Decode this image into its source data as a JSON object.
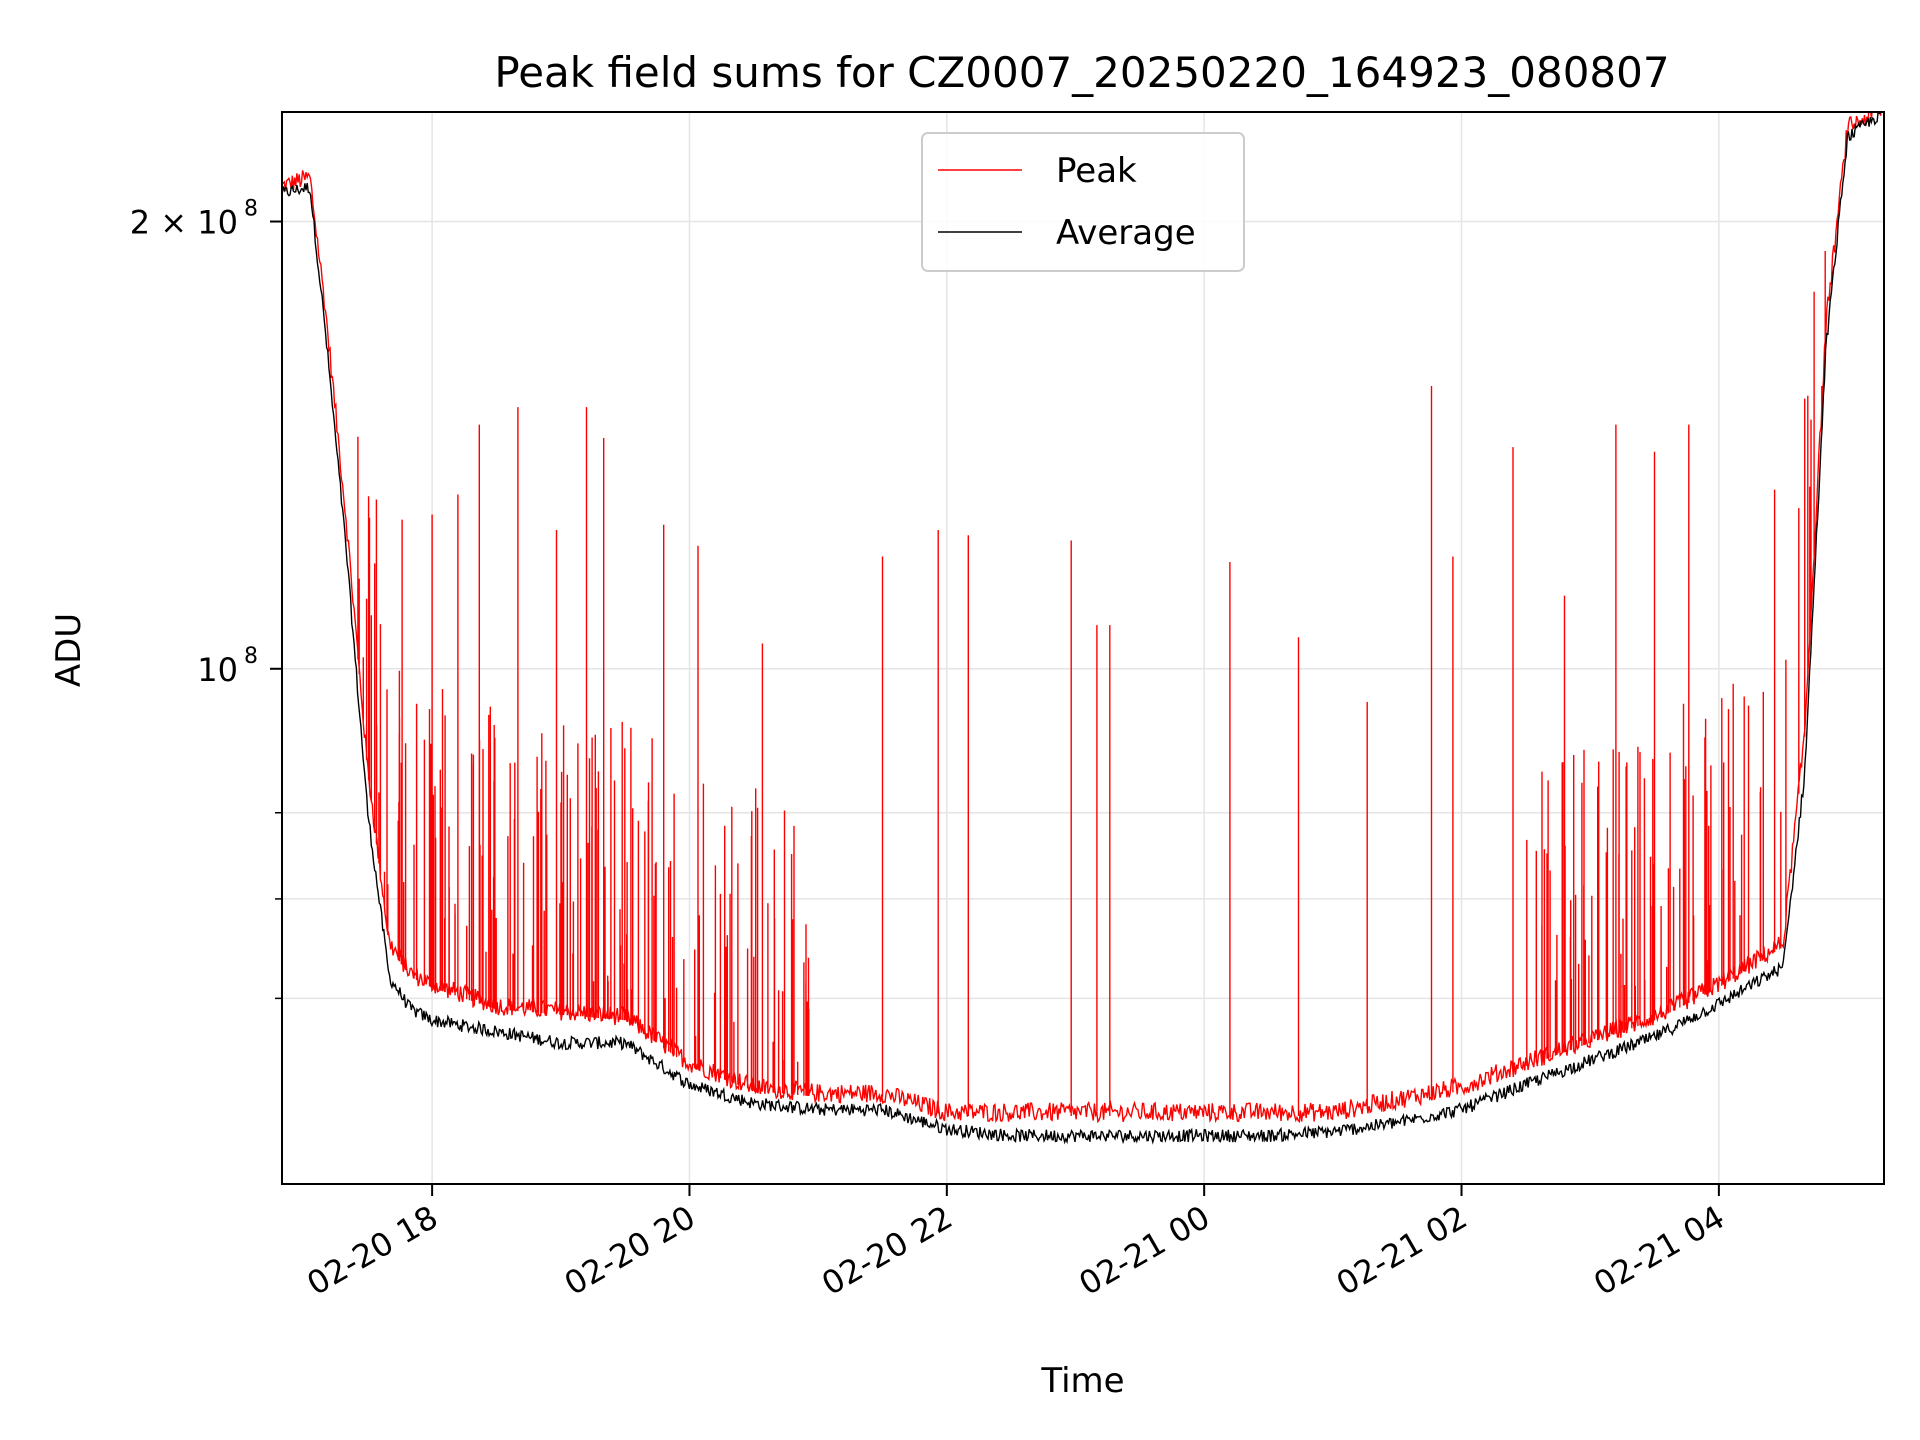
{
  "chart_data": {
    "type": "line",
    "title": "Peak field sums for CZ0007_20250220_164923_080807",
    "xlabel": "Time",
    "ylabel": "ADU",
    "y_scale": "log",
    "x_range": [
      "2025-02-20 16:50",
      "2025-02-21 05:17"
    ],
    "ylim": [
      45000000,
      237000000
    ],
    "grid": true,
    "legend_placement": "top-center",
    "x_ticks": [
      "02-20 18",
      "02-20 20",
      "02-20 22",
      "02-21 00",
      "02-21 02",
      "02-21 04"
    ],
    "y_ticks": [
      {
        "value": 100000000,
        "label": "10",
        "exp": "8"
      },
      {
        "value": 200000000,
        "label": "2 × 10",
        "exp": "8"
      }
    ],
    "colors": {
      "peak": "#ff0000",
      "average": "#000000"
    },
    "series": [
      {
        "name": "Peak",
        "x": [
          "2025-02-20 16:50",
          "2025-02-20 17:03",
          "2025-02-20 17:10",
          "2025-02-20 17:20",
          "2025-02-20 17:30",
          "2025-02-20 17:40",
          "2025-02-20 17:50",
          "2025-02-20 18:00",
          "2025-02-20 18:30",
          "2025-02-20 19:00",
          "2025-02-20 19:30",
          "2025-02-20 20:00",
          "2025-02-20 20:30",
          "2025-02-20 21:00",
          "2025-02-20 21:30",
          "2025-02-20 22:00",
          "2025-02-20 22:30",
          "2025-02-20 23:00",
          "2025-02-20 23:30",
          "2025-02-21 00:00",
          "2025-02-21 00:30",
          "2025-02-21 01:00",
          "2025-02-21 01:30",
          "2025-02-21 02:00",
          "2025-02-21 02:30",
          "2025-02-21 03:00",
          "2025-02-21 03:30",
          "2025-02-21 04:00",
          "2025-02-21 04:30",
          "2025-02-21 04:40",
          "2025-02-21 04:50",
          "2025-02-21 05:00",
          "2025-02-21 05:17"
        ],
        "values": [
          210000000,
          213000000,
          175000000,
          125000000,
          85000000,
          65000000,
          62000000,
          61000000,
          59000000,
          58500000,
          58000000,
          54000000,
          52000000,
          51500000,
          51500000,
          50000000,
          50000000,
          50000000,
          50000000,
          50000000,
          50000000,
          50000000,
          51000000,
          52000000,
          54000000,
          56000000,
          58000000,
          61000000,
          65000000,
          90000000,
          170000000,
          230000000,
          237000000
        ]
      },
      {
        "name": "Average",
        "x": [
          "2025-02-20 16:50",
          "2025-02-20 17:03",
          "2025-02-20 17:10",
          "2025-02-20 17:20",
          "2025-02-20 17:30",
          "2025-02-20 17:40",
          "2025-02-20 17:50",
          "2025-02-20 18:00",
          "2025-02-20 18:30",
          "2025-02-20 19:00",
          "2025-02-20 19:30",
          "2025-02-20 20:00",
          "2025-02-20 20:30",
          "2025-02-20 21:00",
          "2025-02-20 21:30",
          "2025-02-20 22:00",
          "2025-02-20 22:30",
          "2025-02-20 23:00",
          "2025-02-20 23:30",
          "2025-02-21 00:00",
          "2025-02-21 00:30",
          "2025-02-21 01:00",
          "2025-02-21 01:30",
          "2025-02-21 02:00",
          "2025-02-21 02:30",
          "2025-02-21 03:00",
          "2025-02-21 03:30",
          "2025-02-21 04:00",
          "2025-02-21 04:30",
          "2025-02-21 04:40",
          "2025-02-21 04:50",
          "2025-02-21 05:00",
          "2025-02-21 05:17"
        ],
        "values": [
          209000000,
          211000000,
          170000000,
          120000000,
          80000000,
          62000000,
          59000000,
          58000000,
          57000000,
          56000000,
          56000000,
          52500000,
          51000000,
          50500000,
          50500000,
          49000000,
          48500000,
          48500000,
          48500000,
          48500000,
          48500000,
          48800000,
          49500000,
          50500000,
          52500000,
          54500000,
          56500000,
          59500000,
          63000000,
          85000000,
          165000000,
          228000000,
          237000000
        ]
      }
    ],
    "peak_spikes": [
      {
        "x": "2025-02-20 17:26",
        "value": 115000000
      },
      {
        "x": "2025-02-20 17:34",
        "value": 130000000
      },
      {
        "x": "2025-02-20 17:46",
        "value": 126000000
      },
      {
        "x": "2025-02-20 18:00",
        "value": 127000000
      },
      {
        "x": "2025-02-20 18:12",
        "value": 131000000
      },
      {
        "x": "2025-02-20 18:22",
        "value": 146000000
      },
      {
        "x": "2025-02-20 18:40",
        "value": 150000000
      },
      {
        "x": "2025-02-20 18:58",
        "value": 124000000
      },
      {
        "x": "2025-02-20 19:12",
        "value": 150000000
      },
      {
        "x": "2025-02-20 19:20",
        "value": 143000000
      },
      {
        "x": "2025-02-20 19:48",
        "value": 125000000
      },
      {
        "x": "2025-02-20 20:04",
        "value": 121000000
      },
      {
        "x": "2025-02-20 20:34",
        "value": 104000000
      },
      {
        "x": "2025-02-20 21:30",
        "value": 119000000
      },
      {
        "x": "2025-02-20 21:56",
        "value": 124000000
      },
      {
        "x": "2025-02-20 22:10",
        "value": 123000000
      },
      {
        "x": "2025-02-20 22:58",
        "value": 122000000
      },
      {
        "x": "2025-02-20 23:10",
        "value": 107000000
      },
      {
        "x": "2025-02-20 23:16",
        "value": 107000000
      },
      {
        "x": "2025-02-21 00:12",
        "value": 118000000
      },
      {
        "x": "2025-02-21 00:44",
        "value": 105000000
      },
      {
        "x": "2025-02-21 01:16",
        "value": 95000000
      },
      {
        "x": "2025-02-21 01:46",
        "value": 155000000
      },
      {
        "x": "2025-02-21 01:56",
        "value": 119000000
      },
      {
        "x": "2025-02-21 02:24",
        "value": 141000000
      },
      {
        "x": "2025-02-21 02:48",
        "value": 112000000
      },
      {
        "x": "2025-02-21 03:12",
        "value": 146000000
      },
      {
        "x": "2025-02-21 03:30",
        "value": 140000000
      },
      {
        "x": "2025-02-21 03:46",
        "value": 146000000
      },
      {
        "x": "2025-02-21 04:26",
        "value": 132000000
      },
      {
        "x": "2025-02-21 04:40",
        "value": 152000000
      },
      {
        "x": "2025-02-21 04:48",
        "value": 155000000
      }
    ]
  }
}
